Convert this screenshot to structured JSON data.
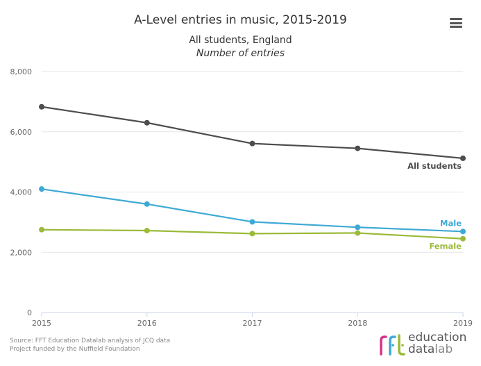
{
  "chart_data": {
    "type": "line",
    "title": "A-Level entries in music, 2015-2019",
    "subtitle": "All students, England",
    "subtitle2": "Number of entries",
    "xlabel": "",
    "ylabel": "",
    "x": [
      "2015",
      "2016",
      "2017",
      "2018",
      "2019"
    ],
    "ylim": [
      0,
      8000
    ],
    "yticks": [
      0,
      2000,
      4000,
      6000,
      8000
    ],
    "ytick_labels": [
      "0",
      "2,000",
      "4,000",
      "6,000",
      "8,000"
    ],
    "grid": true,
    "legend": "inline-end-labels",
    "series": [
      {
        "name": "All students",
        "color": "#4d4d4f",
        "values": [
          6830,
          6300,
          5610,
          5450,
          5120
        ]
      },
      {
        "name": "Male",
        "color": "#3fa9d6",
        "values": [
          4100,
          3600,
          3010,
          2830,
          2690
        ]
      },
      {
        "name": "Female",
        "color": "#9bba3a",
        "values": [
          2750,
          2720,
          2620,
          2640,
          2450
        ]
      }
    ]
  },
  "header": {
    "title": "A-Level entries in music, 2015-2019",
    "subtitle": "All students, England",
    "subtitle2": "Number of entries",
    "menu_icon": "hamburger-menu-icon"
  },
  "footer": {
    "source_line1": "Source: FFT Education Datalab analysis of JCQ data",
    "source_line2": "Project funded by the Nuffield Foundation",
    "logo_word1": "education",
    "logo_word2a": "data",
    "logo_word2b": "lab",
    "logo_colors": [
      "#d6338a",
      "#3fa9d6",
      "#9bba3a"
    ]
  }
}
